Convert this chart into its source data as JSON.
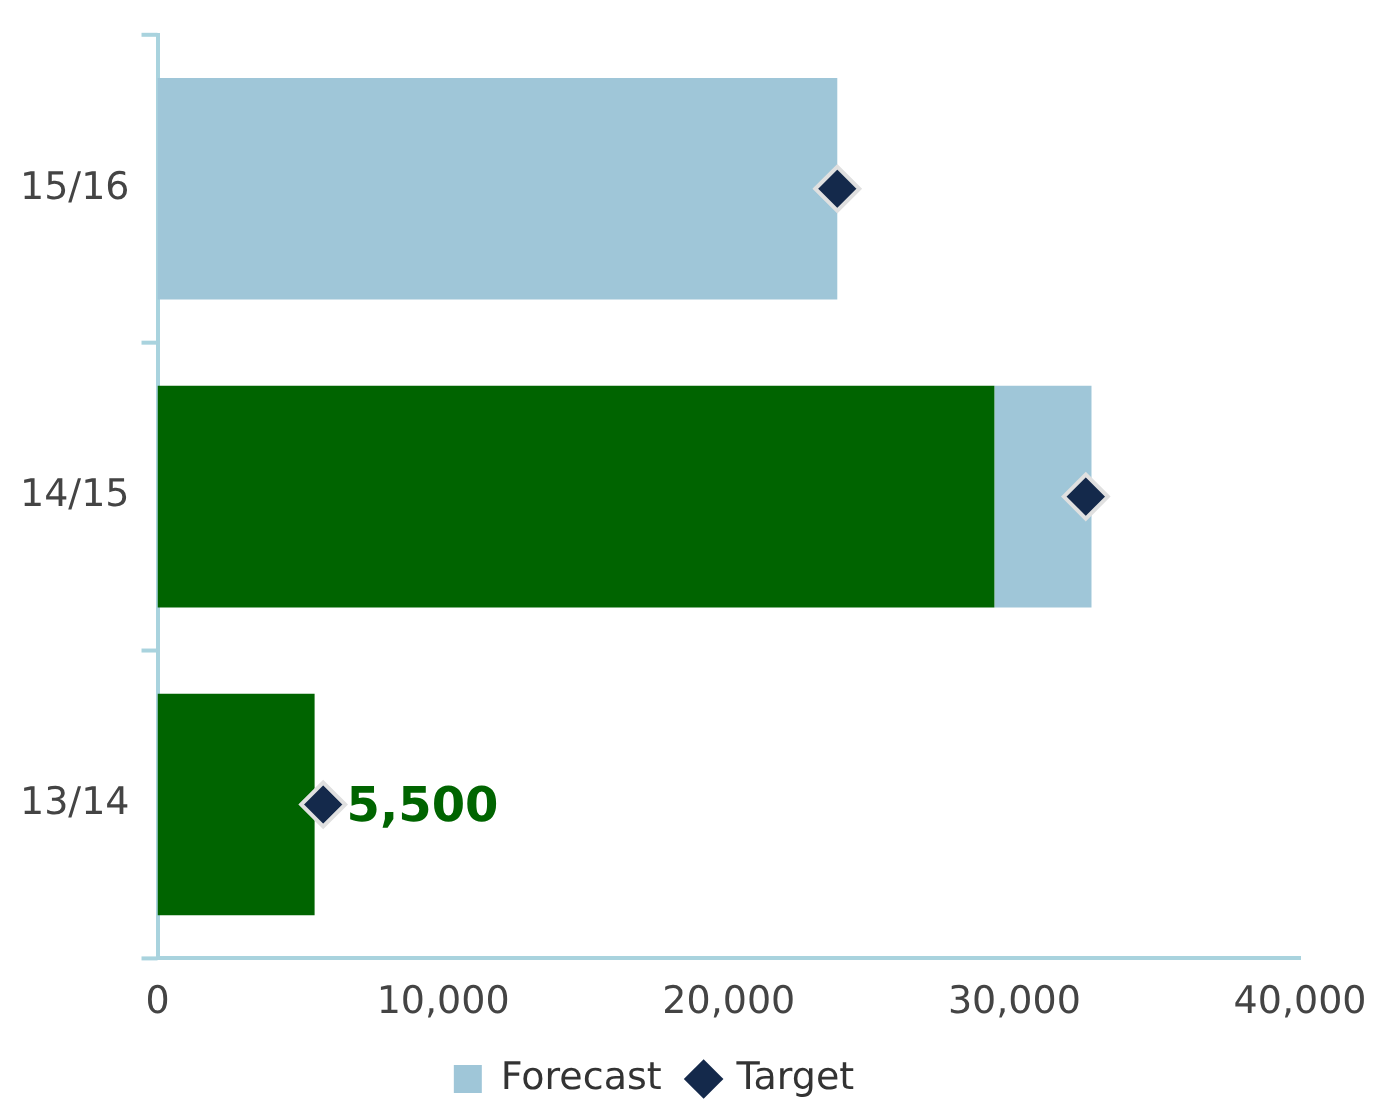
{
  "chart_data": {
    "type": "bar",
    "orientation": "horizontal",
    "stacked": true,
    "categories": [
      "15/16",
      "14/15",
      "13/14"
    ],
    "series": [
      {
        "color": "#006400",
        "values": [
          0,
          29300,
          5500
        ],
        "value_labels": [
          null,
          null,
          "5,500"
        ]
      },
      {
        "name": "Forecast",
        "color": "#9fc6d8",
        "values": [
          23800,
          3400,
          0
        ]
      },
      {
        "name": "Target",
        "type": "scatter",
        "marker": "diamond",
        "color": "#14294b",
        "values": [
          23800,
          32500,
          5800
        ]
      }
    ],
    "xlim": [
      0,
      40000
    ],
    "xticks": [
      0,
      {
        "value": 10000,
        "label": "10,000"
      },
      {
        "value": 20000,
        "label": "20,000"
      },
      {
        "value": 30000,
        "label": "30,000"
      },
      {
        "value": 40000,
        "label": "40,000"
      }
    ],
    "grid": false,
    "legend": "bottom"
  }
}
